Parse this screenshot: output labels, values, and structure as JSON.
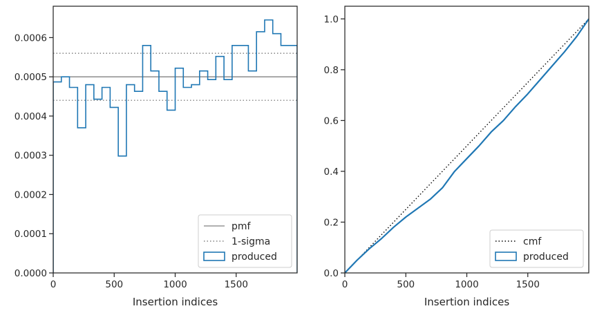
{
  "chart_data": [
    {
      "type": "step",
      "title": "",
      "xlabel": "Insertion indices",
      "ylabel": "",
      "xlim": [
        0,
        2000
      ],
      "ylim": [
        0,
        0.00068
      ],
      "xticks": [
        0,
        500,
        1000,
        1500
      ],
      "yticks": [
        0.0,
        0.0001,
        0.0002,
        0.0003,
        0.0004,
        0.0005,
        0.0006
      ],
      "ytick_labels": [
        "0.0000",
        "0.0001",
        "0.0002",
        "0.0003",
        "0.0004",
        "0.0005",
        "0.0006"
      ],
      "grid": false,
      "legend": {
        "location": "lower-right",
        "entries": [
          {
            "label": "pmf",
            "style": "solid-line",
            "color": "#808080"
          },
          {
            "label": "1-sigma",
            "style": "dotted-line",
            "color": "#808080"
          },
          {
            "label": "produced",
            "style": "step-box",
            "color": "#1f77b4"
          }
        ]
      },
      "reference_lines": {
        "pmf": 0.0005,
        "sigma_upper": 0.00056,
        "sigma_lower": 0.00044
      },
      "series": [
        {
          "name": "produced",
          "color": "#1f77b4",
          "bin_width": 66.67,
          "values": [
            0.000487,
            0.0005,
            0.000473,
            0.00037,
            0.00048,
            0.000443,
            0.000473,
            0.000422,
            0.000298,
            0.00048,
            0.000463,
            0.00058,
            0.000515,
            0.000463,
            0.000415,
            0.000522,
            0.000473,
            0.00048,
            0.000515,
            0.000493,
            0.000552,
            0.000493,
            0.00058,
            0.00058,
            0.000515,
            0.000615,
            0.000645,
            0.00061,
            0.00058,
            0.00058
          ]
        }
      ]
    },
    {
      "type": "line",
      "title": "",
      "xlabel": "Insertion indices",
      "ylabel": "",
      "xlim": [
        0,
        2000
      ],
      "ylim": [
        0,
        1.05
      ],
      "xticks": [
        0,
        500,
        1000,
        1500
      ],
      "yticks": [
        0.0,
        0.2,
        0.4,
        0.6,
        0.8,
        1.0
      ],
      "ytick_labels": [
        "0.0",
        "0.2",
        "0.4",
        "0.6",
        "0.8",
        "1.0"
      ],
      "grid": false,
      "legend": {
        "location": "lower-right",
        "entries": [
          {
            "label": "cmf",
            "style": "dotted-line",
            "color": "#000000"
          },
          {
            "label": "produced",
            "style": "step-box",
            "color": "#1f77b4"
          }
        ]
      },
      "series": [
        {
          "name": "cmf",
          "color": "#000000",
          "x": [
            0,
            2000
          ],
          "y": [
            0.0,
            1.0
          ]
        },
        {
          "name": "produced",
          "color": "#1f77b4",
          "x": [
            0,
            100,
            200,
            300,
            400,
            500,
            600,
            700,
            800,
            900,
            1000,
            1100,
            1200,
            1300,
            1400,
            1500,
            1600,
            1700,
            1800,
            1900,
            2000
          ],
          "y": [
            0.0,
            0.05,
            0.095,
            0.135,
            0.18,
            0.22,
            0.255,
            0.29,
            0.335,
            0.4,
            0.45,
            0.5,
            0.555,
            0.6,
            0.655,
            0.705,
            0.76,
            0.815,
            0.87,
            0.93,
            1.0
          ]
        }
      ]
    }
  ]
}
